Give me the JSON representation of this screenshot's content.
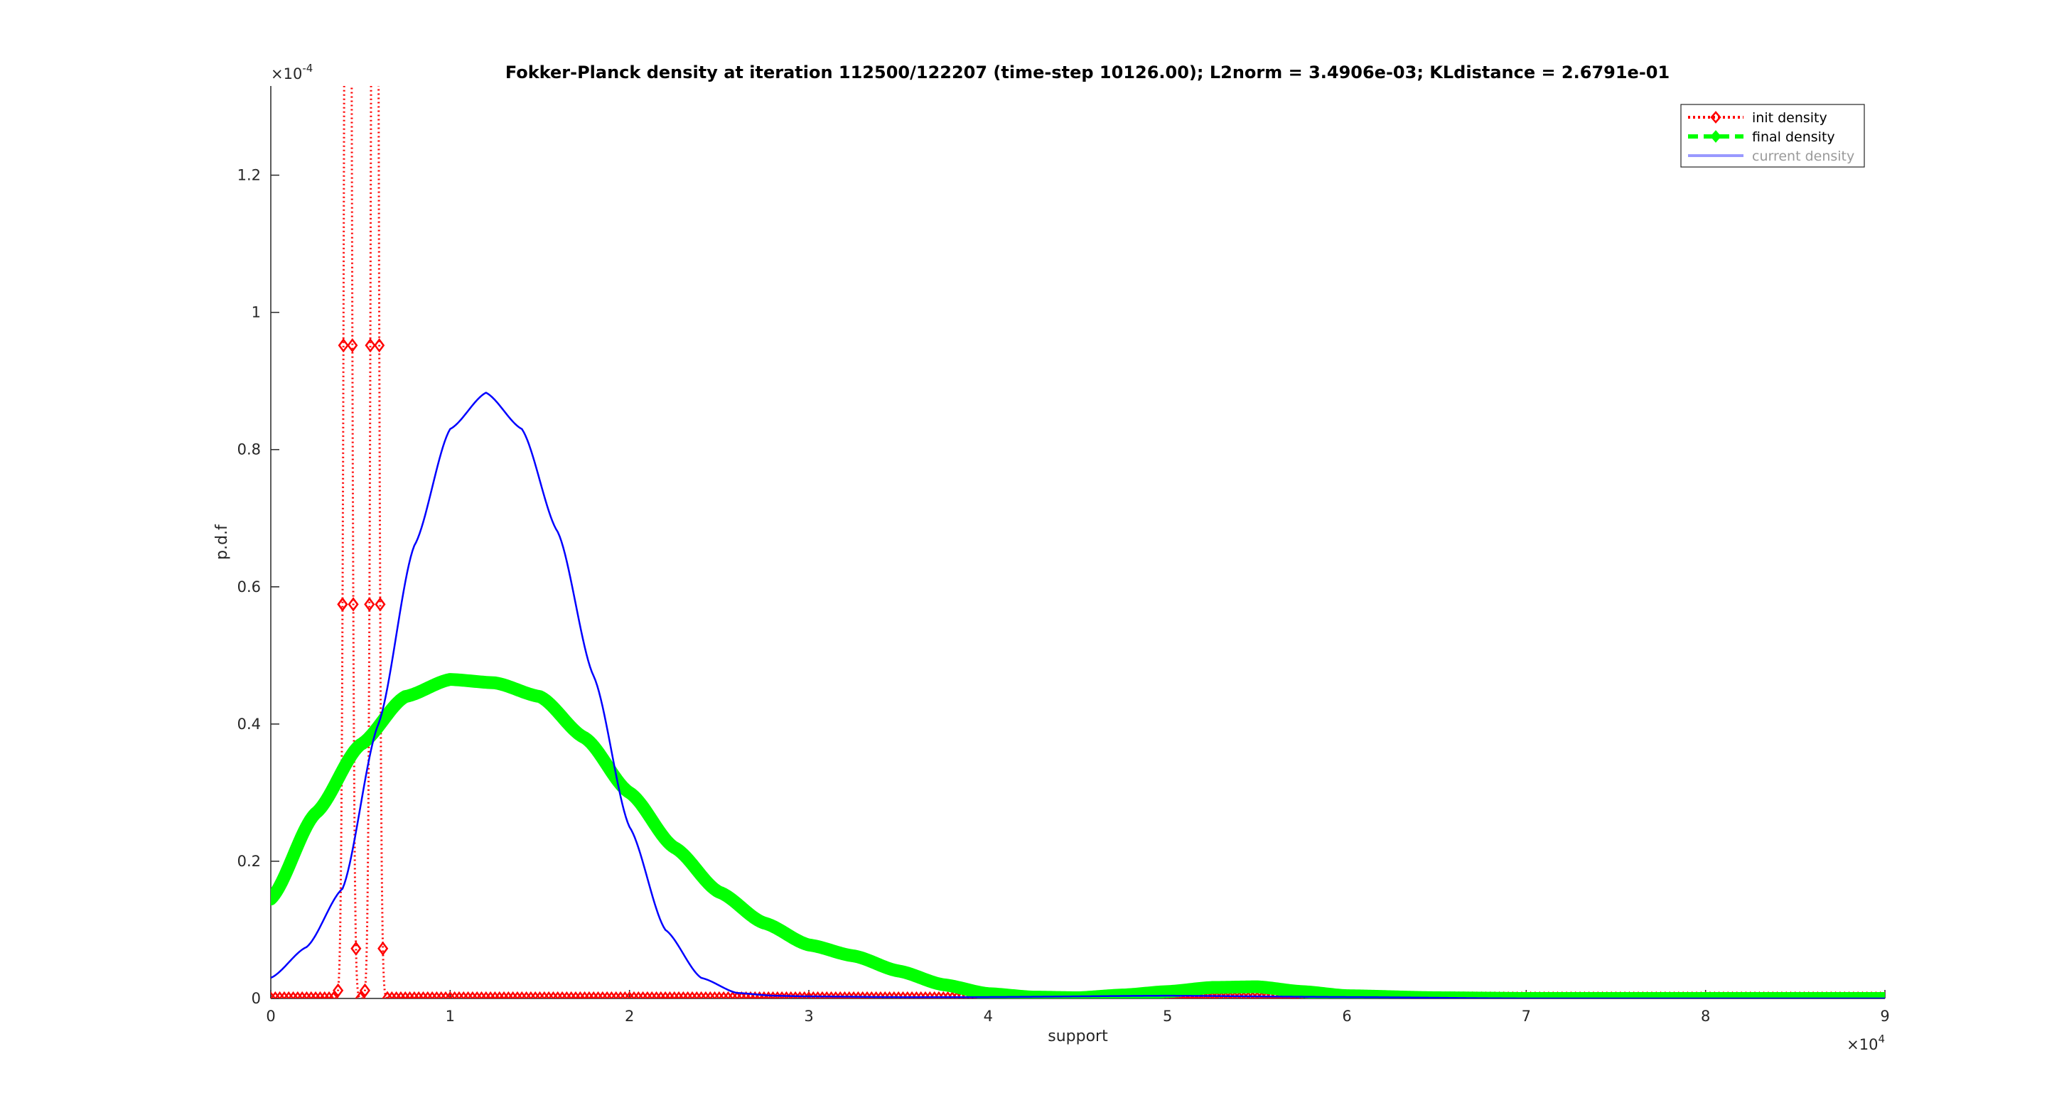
{
  "chart_data": {
    "type": "line",
    "title": "Fokker-Planck density at iteration 112500/122207 (time-step 10126.00); L2norm = 3.4906e-03; KLdistance = 2.6791e-01",
    "xlabel": "support",
    "ylabel": "p.d.f",
    "x_multiplier_base": "×10",
    "x_multiplier_exp": "4",
    "y_multiplier_base": "×10",
    "y_multiplier_exp": "-4",
    "xlim": [
      0,
      9
    ],
    "ylim": [
      0,
      1.33
    ],
    "xticks": [
      0,
      1,
      2,
      3,
      4,
      5,
      6,
      7,
      8,
      9
    ],
    "xtick_labels": [
      "0",
      "1",
      "2",
      "3",
      "4",
      "5",
      "6",
      "7",
      "8",
      "9"
    ],
    "yticks": [
      0,
      0.2,
      0.4,
      0.6,
      0.8,
      1,
      1.2
    ],
    "ytick_labels": [
      "0",
      "0.2",
      "0.4",
      "0.6",
      "0.8",
      "1",
      "1.2"
    ],
    "legend_location": "top-right",
    "colors": {
      "init": "#ff0000",
      "final": "#00ff00",
      "current": "#0000ff",
      "current_legend": "#9999ff"
    },
    "series": [
      {
        "name": "init density",
        "style": "dotted-diamond",
        "peaks": [
          {
            "center": 0.43,
            "height": 3.0,
            "sd": 0.0165
          },
          {
            "center": 0.58,
            "height": 3.0,
            "sd": 0.0165
          }
        ],
        "marker_x": [
          0.4,
          0.405,
          0.41,
          0.415,
          0.42,
          0.425,
          0.43,
          0.435,
          0.44,
          0.445,
          0.45,
          0.455,
          0.46,
          0.555,
          0.56,
          0.565,
          0.57,
          0.5725,
          0.575,
          0.5775,
          0.58,
          0.5825,
          0.585,
          0.5875,
          0.59,
          0.595,
          0.6,
          0.605,
          0.61
        ]
      },
      {
        "name": "final density",
        "style": "thick-dashed",
        "x": [
          0,
          0.25,
          0.5,
          0.75,
          1.0,
          1.25,
          1.5,
          1.75,
          2.0,
          2.25,
          2.5,
          2.75,
          3.0,
          3.25,
          3.5,
          3.75,
          4.0,
          4.25,
          4.5,
          4.75,
          5.0,
          5.25,
          5.5,
          5.75,
          6.0,
          6.5,
          7.0,
          8.0,
          9.0
        ],
        "values": [
          0.145,
          0.27,
          0.37,
          0.44,
          0.465,
          0.46,
          0.44,
          0.38,
          0.3,
          0.22,
          0.155,
          0.11,
          0.078,
          0.062,
          0.04,
          0.02,
          0.007,
          0.002,
          0.001,
          0.005,
          0.01,
          0.016,
          0.017,
          0.01,
          0.004,
          0.001,
          0.0,
          0.0,
          0.0
        ]
      },
      {
        "name": "current density",
        "style": "solid",
        "x": [
          0,
          0.2,
          0.4,
          0.6,
          0.8,
          1.0,
          1.2,
          1.4,
          1.6,
          1.8,
          2.0,
          2.2,
          2.4,
          2.6,
          2.8,
          3.0,
          3.5,
          4.0,
          5.0,
          6.0,
          7.0,
          8.0,
          9.0
        ],
        "values": [
          0.03,
          0.075,
          0.16,
          0.4,
          0.66,
          0.83,
          0.883,
          0.83,
          0.68,
          0.47,
          0.25,
          0.1,
          0.03,
          0.008,
          0.004,
          0.003,
          0.002,
          0.002,
          0.004,
          0.002,
          0.0,
          0.0,
          0.0
        ]
      }
    ]
  }
}
